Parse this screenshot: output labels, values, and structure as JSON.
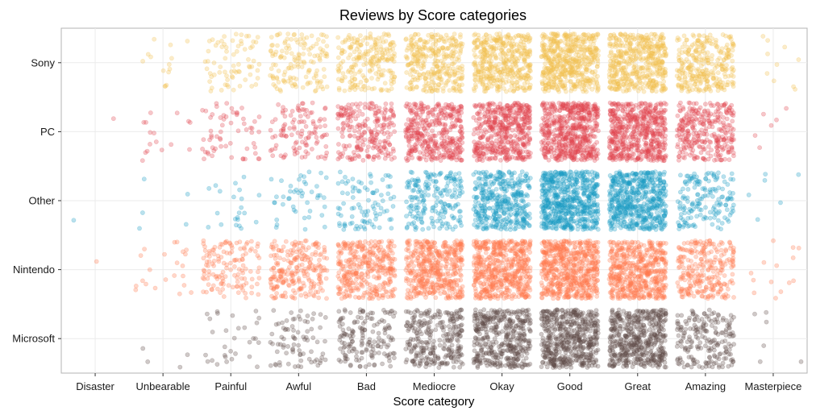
{
  "chart_data": {
    "type": "scatter",
    "title": "Reviews by Score categories",
    "xlabel": "Score category",
    "ylabel": "",
    "categories": [
      "Disaster",
      "Unbearable",
      "Painful",
      "Awful",
      "Bad",
      "Mediocre",
      "Okay",
      "Good",
      "Great",
      "Amazing",
      "Masterpiece"
    ],
    "platforms": [
      "Microsoft",
      "Nintendo",
      "Other",
      "PC",
      "Sony"
    ],
    "grid": true,
    "legend": "none",
    "series": [
      {
        "name": "Sony",
        "color": "#f2c14e",
        "counts": [
          0,
          14,
          70,
          140,
          220,
          320,
          420,
          520,
          470,
          300,
          10
        ]
      },
      {
        "name": "PC",
        "color": "#e0474f",
        "counts": [
          1,
          16,
          60,
          110,
          230,
          380,
          470,
          560,
          540,
          300,
          6
        ]
      },
      {
        "name": "Other",
        "color": "#1a9cc4",
        "counts": [
          1,
          5,
          22,
          45,
          90,
          200,
          380,
          600,
          550,
          160,
          6
        ]
      },
      {
        "name": "Nintendo",
        "color": "#ff7a4f",
        "counts": [
          1,
          22,
          130,
          230,
          350,
          450,
          540,
          590,
          520,
          260,
          14
        ]
      },
      {
        "name": "Microsoft",
        "color": "#5f4d49",
        "counts": [
          0,
          4,
          30,
          80,
          160,
          280,
          410,
          520,
          500,
          200,
          6
        ]
      }
    ]
  }
}
